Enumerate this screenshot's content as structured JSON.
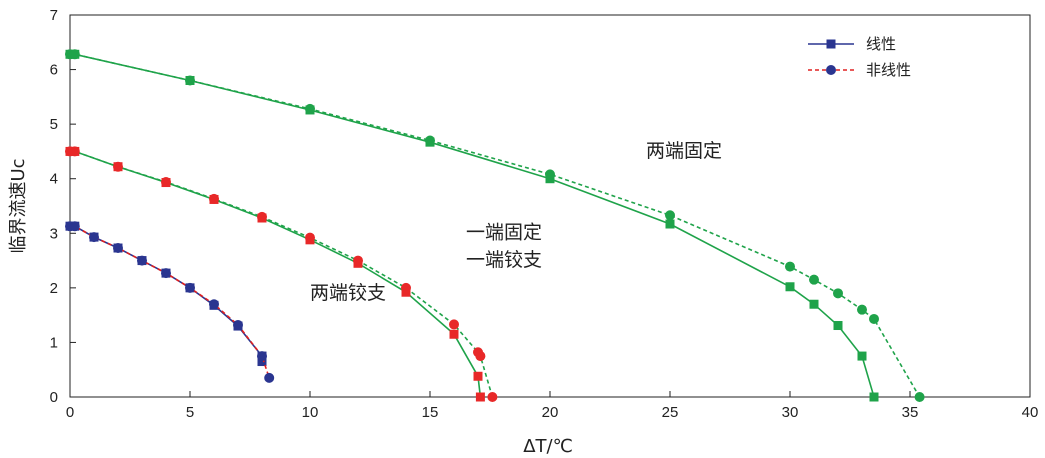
{
  "chart_data": {
    "type": "line",
    "xlabel": "ΔT/℃",
    "ylabel": "临界流速Uc",
    "xlim": [
      0,
      40
    ],
    "ylim": [
      0,
      7
    ],
    "xticks": [
      "0",
      "5",
      "10",
      "15",
      "20",
      "25",
      "30",
      "35",
      "40"
    ],
    "yticks": [
      "0",
      "1",
      "2",
      "3",
      "4",
      "5",
      "6",
      "7"
    ],
    "grid": false,
    "legend": {
      "placement": "top-right",
      "entries": [
        {
          "label": "线性",
          "style": "solid",
          "marker": "square",
          "line_color": "#2a3590",
          "marker_color": "#2a3590"
        },
        {
          "label": "非线性",
          "style": "dashed",
          "marker": "circle",
          "line_color": "#e02020",
          "marker_color": "#2a3590"
        }
      ]
    },
    "annotations": [
      {
        "text": "两端固定",
        "x": 24,
        "y": 4.4
      },
      {
        "text": "一端固定",
        "x": 16.5,
        "y": 2.9
      },
      {
        "text": "一端铰支",
        "x": 16.5,
        "y": 2.4
      },
      {
        "text": "两端铰支",
        "x": 10,
        "y": 1.8
      }
    ],
    "series": [
      {
        "name": "两端铰支 线性",
        "style": "solid",
        "marker": "square",
        "color": "#2a3590",
        "marker_color": "#2a3590",
        "x": [
          0,
          0.2,
          1,
          2,
          3,
          4,
          5,
          6,
          7,
          8,
          8
        ],
        "y": [
          3.13,
          3.13,
          2.93,
          2.73,
          2.5,
          2.27,
          2.0,
          1.68,
          1.3,
          0.75,
          0.65
        ]
      },
      {
        "name": "两端铰支 非线性",
        "style": "dashed",
        "marker": "circle",
        "color": "#e02020",
        "marker_color": "#2a3590",
        "x": [
          0,
          0.2,
          1,
          2,
          3,
          4,
          5,
          6,
          7,
          8,
          8.3
        ],
        "y": [
          3.13,
          3.13,
          2.93,
          2.73,
          2.5,
          2.27,
          2.0,
          1.7,
          1.32,
          0.75,
          0.35
        ]
      },
      {
        "name": "一端固定一端铰支 线性",
        "style": "solid",
        "marker": "square",
        "color": "#1fa34a",
        "marker_color": "#e82828",
        "x": [
          0,
          0.2,
          2,
          4,
          6,
          8,
          10,
          12,
          14,
          16,
          17,
          17.1
        ],
        "y": [
          4.5,
          4.5,
          4.22,
          3.93,
          3.62,
          3.28,
          2.88,
          2.45,
          1.92,
          1.15,
          0.38,
          0.0
        ]
      },
      {
        "name": "一端固定一端铰支 非线性",
        "style": "dashed",
        "marker": "circle",
        "color": "#1fa34a",
        "marker_color": "#e82828",
        "x": [
          0,
          0.2,
          2,
          4,
          6,
          8,
          10,
          12,
          14,
          16,
          17,
          17.1,
          17.6
        ],
        "y": [
          4.5,
          4.5,
          4.22,
          3.94,
          3.63,
          3.3,
          2.92,
          2.5,
          2.0,
          1.33,
          0.82,
          0.75,
          0.0
        ]
      },
      {
        "name": "两端固定 线性",
        "style": "solid",
        "marker": "square",
        "color": "#1fa34a",
        "marker_color": "#1fa34a",
        "x": [
          0,
          0.2,
          5,
          10,
          15,
          20,
          25,
          30,
          31,
          32,
          33,
          33.5
        ],
        "y": [
          6.28,
          6.28,
          5.8,
          5.26,
          4.67,
          4.0,
          3.17,
          2.02,
          1.7,
          1.31,
          0.75,
          0.0
        ]
      },
      {
        "name": "两端固定 非线性",
        "style": "dashed",
        "marker": "circle",
        "color": "#1fa34a",
        "marker_color": "#1fa34a",
        "x": [
          0,
          0.2,
          5,
          10,
          15,
          20,
          25,
          30,
          31,
          32,
          33,
          33.5,
          35.4
        ],
        "y": [
          6.28,
          6.28,
          5.8,
          5.28,
          4.7,
          4.08,
          3.33,
          2.39,
          2.15,
          1.9,
          1.6,
          1.43,
          0.0
        ]
      }
    ]
  }
}
